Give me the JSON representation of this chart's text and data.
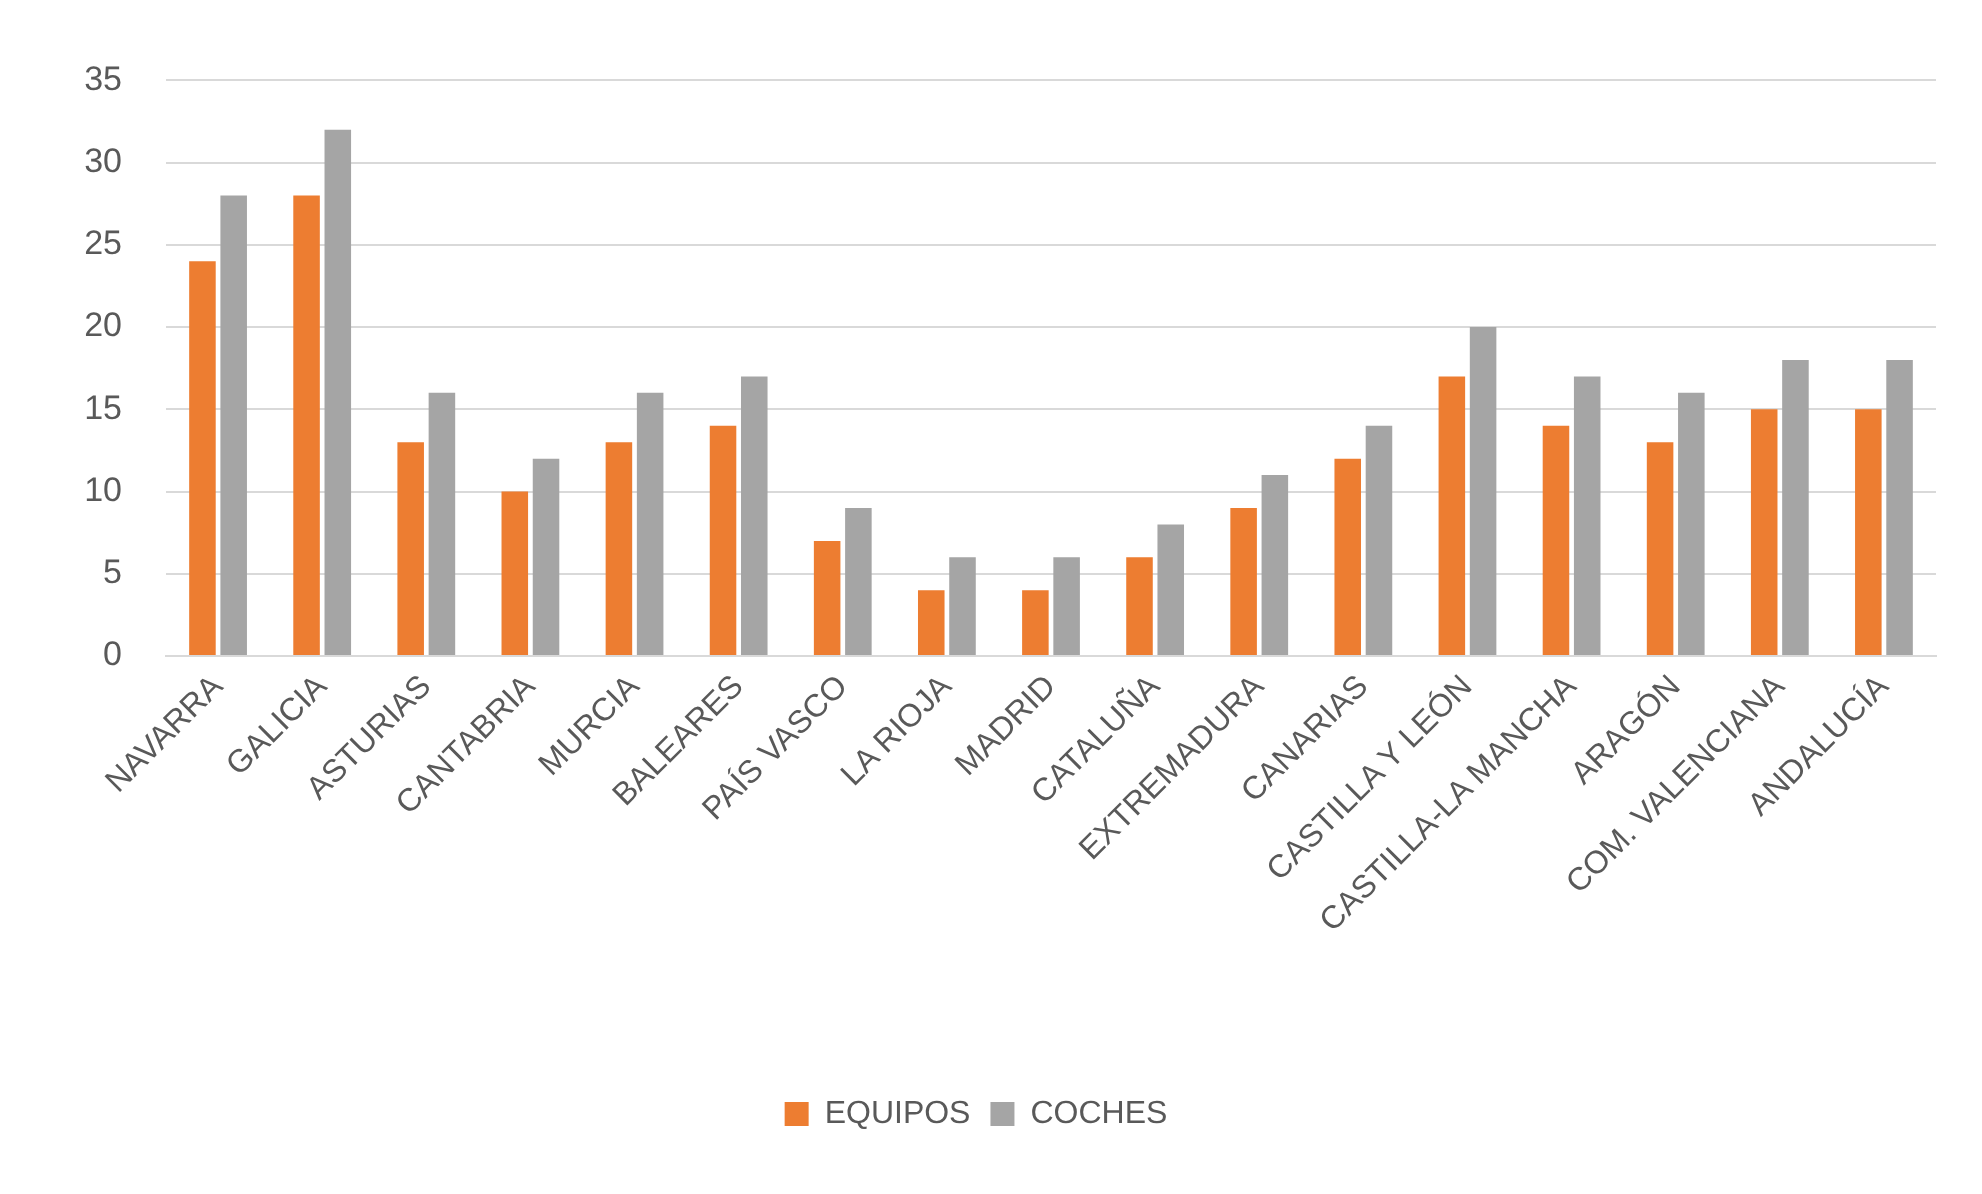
{
  "chart_data": {
    "type": "bar",
    "categories": [
      "NAVARRA",
      "GALICIA",
      "ASTURIAS",
      "CANTABRIA",
      "MURCIA",
      "BALEARES",
      "PAÍS VASCO",
      "LA RIOJA",
      "MADRID",
      "CATALUÑA",
      "EXTREMADURA",
      "CANARIAS",
      "CASTILLA Y LEÓN",
      "CASTILLA-LA MANCHA",
      "ARAGÓN",
      "COM. VALENCIANA",
      "ANDALUCÍA"
    ],
    "series": [
      {
        "name": "EQUIPOS",
        "color": "#ed7d31",
        "values": [
          24,
          28,
          13,
          10,
          13,
          14,
          7,
          4,
          4,
          6,
          9,
          12,
          17,
          14,
          13,
          15,
          15
        ]
      },
      {
        "name": "COCHES",
        "color": "#a5a5a5",
        "values": [
          28,
          32,
          16,
          12,
          16,
          17,
          9,
          6,
          6,
          8,
          11,
          14,
          20,
          17,
          16,
          18,
          18
        ]
      }
    ],
    "ylim": [
      0,
      35
    ],
    "yticks": [
      0,
      5,
      10,
      15,
      20,
      25,
      30,
      35
    ],
    "grid": "y",
    "legend": "bottom"
  }
}
